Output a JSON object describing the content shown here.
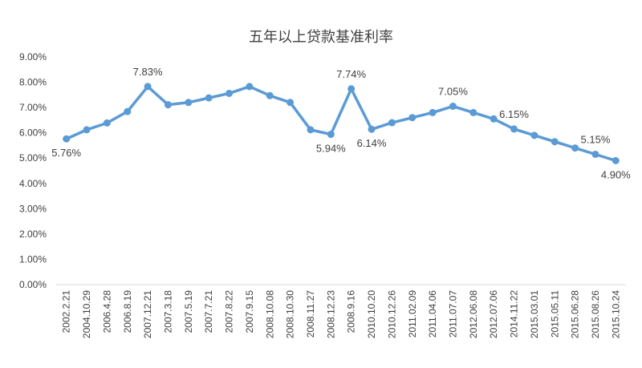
{
  "chart_data": {
    "type": "line",
    "title": "五年以上贷款基准利率",
    "xlabel": "",
    "ylabel": "",
    "ylim": [
      0,
      9
    ],
    "yticks": [
      "0.00%",
      "1.00%",
      "2.00%",
      "3.00%",
      "4.00%",
      "5.00%",
      "6.00%",
      "7.00%",
      "8.00%",
      "9.00%"
    ],
    "grid": false,
    "legend": "none",
    "line_color": "#5B9BD5",
    "categories": [
      "2002.2.21",
      "2004.10.29",
      "2006.4.28",
      "2006.8.19",
      "2007.12.21",
      "2007.3.18",
      "2007.5.19",
      "2007.7.21",
      "2007.8.22",
      "2007.9.15",
      "2008.10.08",
      "2008.10.30",
      "2008.11.27",
      "2008.12.23",
      "2008.9.16",
      "2010.10.20",
      "2010.12.26",
      "2011.02.09",
      "2011.04.06",
      "2011.07.07",
      "2012.06.08",
      "2012.07.06",
      "2014.11.22",
      "2015.03.01",
      "2015.05.11",
      "2015.06.28",
      "2015.08.26",
      "2015.10.24"
    ],
    "values": [
      5.76,
      6.12,
      6.39,
      6.84,
      7.83,
      7.11,
      7.2,
      7.38,
      7.56,
      7.83,
      7.47,
      7.2,
      6.12,
      5.94,
      7.74,
      6.14,
      6.4,
      6.6,
      6.8,
      7.05,
      6.8,
      6.55,
      6.15,
      5.9,
      5.65,
      5.4,
      5.15,
      4.9
    ],
    "data_labels": [
      {
        "index": 0,
        "text": "5.76%",
        "pos": "below"
      },
      {
        "index": 4,
        "text": "7.83%",
        "pos": "above"
      },
      {
        "index": 13,
        "text": "5.94%",
        "pos": "below"
      },
      {
        "index": 14,
        "text": "7.74%",
        "pos": "above"
      },
      {
        "index": 15,
        "text": "6.14%",
        "pos": "below"
      },
      {
        "index": 19,
        "text": "7.05%",
        "pos": "above"
      },
      {
        "index": 22,
        "text": "6.15%",
        "pos": "above"
      },
      {
        "index": 26,
        "text": "5.15%",
        "pos": "above"
      },
      {
        "index": 27,
        "text": "4.90%",
        "pos": "below"
      }
    ]
  }
}
